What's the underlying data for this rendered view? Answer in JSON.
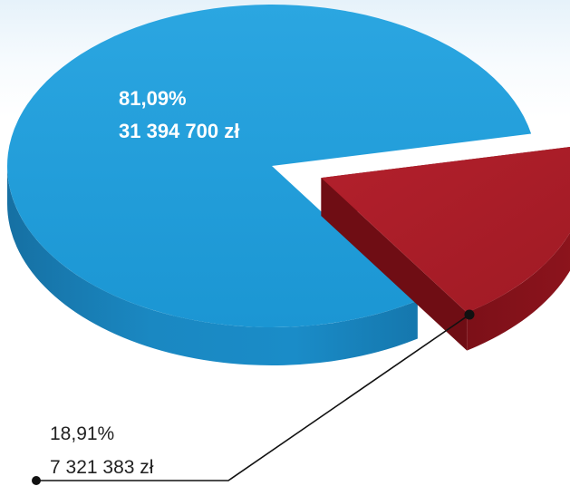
{
  "chart_data": {
    "type": "pie",
    "style": "3d",
    "currency": "zł",
    "series": [
      {
        "values": [
          81.09,
          18.91
        ],
        "amounts": [
          31394700,
          7321383
        ]
      }
    ],
    "slices": [
      {
        "percent": 81.09,
        "amount": 31394700,
        "percent_label": "81,09%",
        "amount_label": "31 394 700 zł",
        "color": "#1f9bd8",
        "exploded": false
      },
      {
        "percent": 18.91,
        "amount": 7321383,
        "percent_label": "18,91%",
        "amount_label": "7 321 383 zł",
        "color": "#a81c27",
        "exploded": true
      }
    ],
    "colors": {
      "blue_slice": "#1f9bd8",
      "red_slice": "#a81c27",
      "leader_line": "#111111"
    },
    "legend": "none",
    "grid": false
  }
}
